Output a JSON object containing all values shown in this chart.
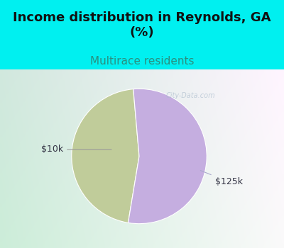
{
  "title": "Income distribution in Reynolds, GA\n(%)",
  "subtitle": "Multirace residents",
  "slices": [
    {
      "label": "$10k",
      "value": 46,
      "color": "#c0cc9a"
    },
    {
      "label": "$125k",
      "value": 54,
      "color": "#c5aee0"
    }
  ],
  "title_fontsize": 13,
  "subtitle_fontsize": 11,
  "subtitle_color": "#2a9080",
  "title_color": "#111111",
  "background_color": "#00f0f0",
  "chart_bg_left": "#b8e8d0",
  "chart_bg_right": "#e8f0f8",
  "watermark": "City-Data.com",
  "annotation_color": "#333344",
  "annotation_fontsize": 9,
  "startangle": 95
}
